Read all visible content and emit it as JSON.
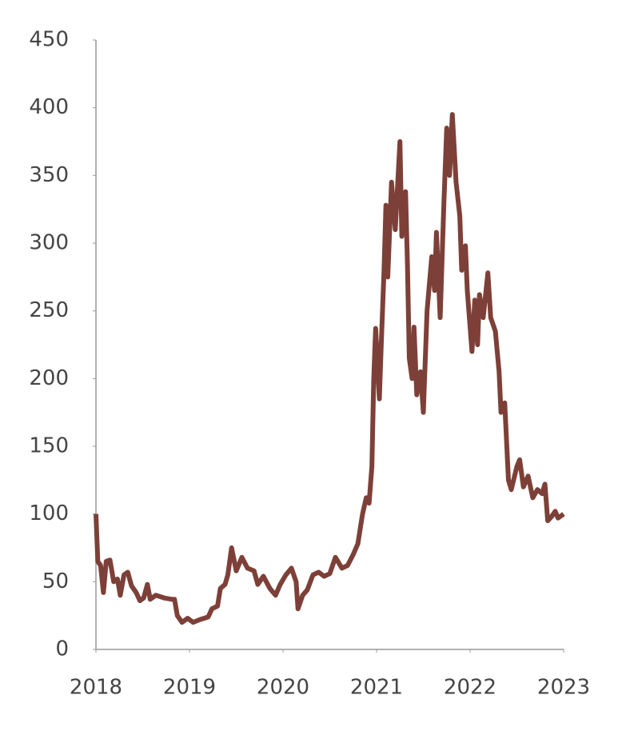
{
  "chart_data": {
    "type": "line",
    "color": "#7d4038",
    "xlim": [
      2018,
      2023
    ],
    "xticks": [
      2018,
      2019,
      2020,
      2021,
      2022,
      2023
    ],
    "ylim": [
      0,
      450
    ],
    "yticks": [
      0,
      50,
      100,
      150,
      200,
      250,
      300,
      350,
      400,
      450
    ],
    "grid": false,
    "x": [
      2018.0,
      2018.02,
      2018.05,
      2018.08,
      2018.11,
      2018.15,
      2018.19,
      2018.23,
      2018.26,
      2018.3,
      2018.34,
      2018.38,
      2018.43,
      2018.47,
      2018.51,
      2018.55,
      2018.58,
      2018.64,
      2018.73,
      2018.81,
      2018.84,
      2018.87,
      2018.92,
      2018.98,
      2019.04,
      2019.11,
      2019.2,
      2019.24,
      2019.3,
      2019.33,
      2019.38,
      2019.41,
      2019.45,
      2019.5,
      2019.56,
      2019.62,
      2019.69,
      2019.73,
      2019.79,
      2019.86,
      2019.92,
      2019.97,
      2020.03,
      2020.09,
      2020.14,
      2020.16,
      2020.21,
      2020.26,
      2020.32,
      2020.38,
      2020.44,
      2020.5,
      2020.56,
      2020.63,
      2020.69,
      2020.75,
      2020.8,
      2020.85,
      2020.89,
      2020.92,
      2020.95,
      2020.97,
      2020.99,
      2021.03,
      2021.05,
      2021.08,
      2021.1,
      2021.12,
      2021.16,
      2021.2,
      2021.25,
      2021.27,
      2021.31,
      2021.33,
      2021.35,
      2021.38,
      2021.4,
      2021.43,
      2021.47,
      2021.5,
      2021.54,
      2021.59,
      2021.62,
      2021.64,
      2021.68,
      2021.72,
      2021.75,
      2021.78,
      2021.81,
      2021.85,
      2021.89,
      2021.91,
      2021.95,
      2021.97,
      2022.02,
      2022.05,
      2022.08,
      2022.1,
      2022.14,
      2022.19,
      2022.22,
      2022.27,
      2022.31,
      2022.33,
      2022.37,
      2022.41,
      2022.44,
      2022.5,
      2022.53,
      2022.57,
      2022.62,
      2022.67,
      2022.72,
      2022.77,
      2022.8,
      2022.83,
      2022.87,
      2022.91,
      2022.94,
      2023.0
    ],
    "values": [
      100,
      65,
      62,
      42,
      65,
      66,
      50,
      52,
      40,
      55,
      57,
      47,
      42,
      36,
      38,
      48,
      37,
      40,
      38,
      37,
      37,
      25,
      20,
      23,
      20,
      22,
      24,
      30,
      32,
      45,
      48,
      55,
      75,
      58,
      68,
      60,
      58,
      48,
      54,
      45,
      40,
      48,
      55,
      60,
      50,
      30,
      40,
      44,
      55,
      57,
      54,
      56,
      68,
      60,
      62,
      70,
      78,
      100,
      112,
      108,
      135,
      200,
      237,
      185,
      225,
      280,
      328,
      275,
      345,
      310,
      375,
      305,
      338,
      285,
      215,
      200,
      238,
      188,
      205,
      175,
      250,
      290,
      265,
      308,
      245,
      330,
      385,
      350,
      395,
      345,
      320,
      280,
      298,
      265,
      220,
      258,
      225,
      262,
      245,
      278,
      245,
      235,
      205,
      175,
      182,
      125,
      118,
      135,
      140,
      120,
      128,
      112,
      118,
      115,
      122,
      95,
      98,
      102,
      97,
      100
    ]
  }
}
